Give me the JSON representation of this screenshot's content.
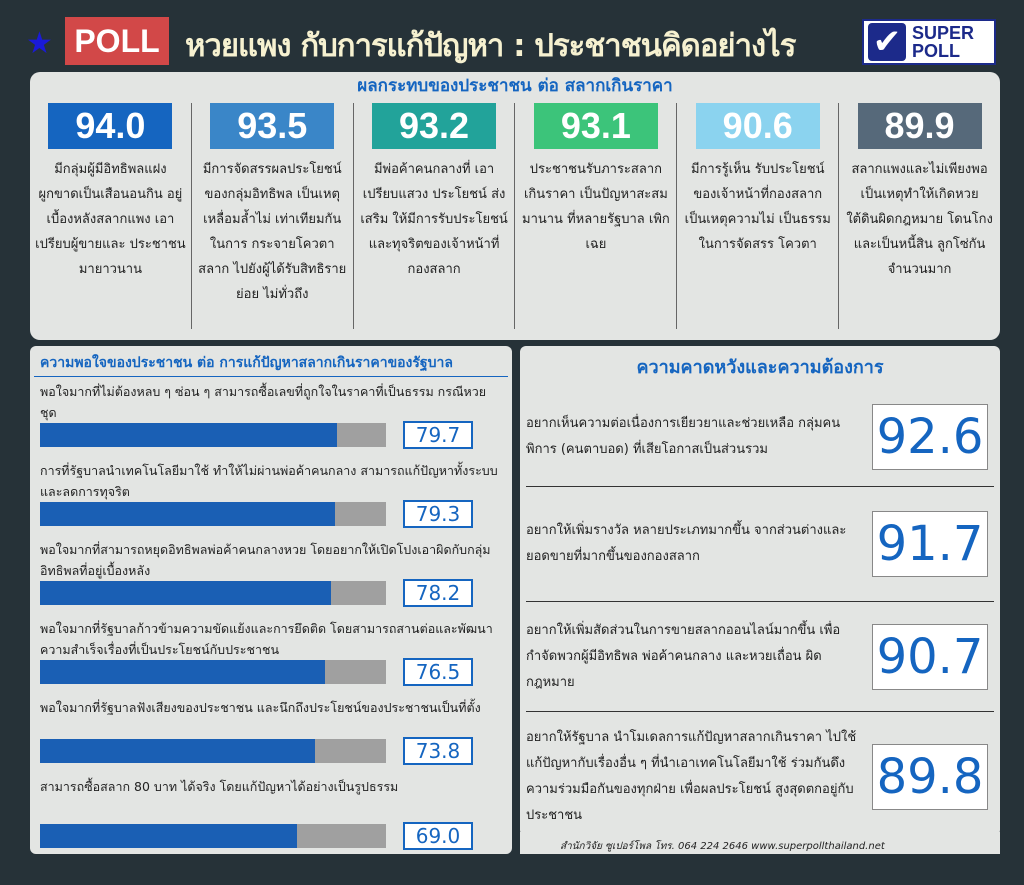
{
  "header": {
    "badge": "POLL",
    "title": "หวยแพง กับการแก้ปัญหา : ประชาชนคิดอย่างไร",
    "logo_text": "SUPER POLL"
  },
  "impact": {
    "title": "ผลกระทบของประชาชน ต่อ สลากเกินราคา",
    "items": [
      {
        "value": "94.0",
        "color": "#1565c0",
        "text": "มีกลุ่มผู้มีอิทธิพลแฝง ผูกขาดเป็นเสือนอนกิน อยู่เบื้องหลังสลากแพง เอาเปรียบผู้ขายและ ประชาชนมายาวนาน"
      },
      {
        "value": "93.5",
        "color": "#3a86c8",
        "text": "มีการจัดสรรผลประโยชน์ ของกลุ่มอิทธิพล เป็นเหตุเหลื่อมล้ำไม่ เท่าเทียมกันในการ กระจายโควตาสลาก ไปยังผู้ได้รับสิทธิรายย่อย ไม่ทั่วถึง"
      },
      {
        "value": "93.2",
        "color": "#22a39a",
        "text": "มีพ่อค้าคนกลางที่ เอาเปรียบแสวง ประโยชน์ ส่งเสริม ให้มีการรับประโยชน์ และทุจริตของเจ้าหน้าที่ กองสลาก"
      },
      {
        "value": "93.1",
        "color": "#3cc47a",
        "text": "ประชาชนรับภาระสลาก เกินราคา เป็นปัญหาสะสม มานาน ที่หลายรัฐบาล เพิกเฉย"
      },
      {
        "value": "90.6",
        "color": "#8bd3ef",
        "text": "มีการรู้เห็น รับประโยชน์ ของเจ้าหน้าที่กองสลาก เป็นเหตุความไม่ เป็นธรรมในการจัดสรร โควตา"
      },
      {
        "value": "89.9",
        "color": "#56697a",
        "text": "สลากแพงและไม่เพียงพอ เป็นเหตุทำให้เกิดหวย ใต้ดินผิดกฎหมาย โดนโกงและเป็นหนี้สิน ลูกโซ่กันจำนวนมาก"
      }
    ]
  },
  "chart_data": {
    "type": "bar",
    "title": "ความพอใจของประชาชน ต่อ การแก้ปัญหาสลากเกินราคาของรัฐบาล",
    "orientation": "horizontal",
    "xlim": [
      0,
      100
    ],
    "categories": [
      "พอใจมากที่ไม่ต้องหลบ ๆ ซ่อน ๆ สามารถซื้อเลขที่ถูกใจในราคาที่เป็นธรรม กรณีหวยชุด",
      "การที่รัฐบาลนำเทคโนโลยีมาใช้ ทำให้ไม่ผ่านพ่อค้าคนกลาง สามารถแก้ปัญหาทั้งระบบและลดการทุจริต",
      "พอใจมากที่สามารถหยุดอิทธิพลพ่อค้าคนกลางหวย โดยอยากให้เปิดโปงเอาผิดกับกลุ่มอิทธิพลที่อยู่เบื้องหลัง",
      "พอใจมากที่รัฐบาลก้าวข้ามความขัดแย้งและการยึดติด โดยสามารถสานต่อและพัฒนาความสำเร็จเรื่องที่เป็นประโยชน์กับประชาชน",
      "พอใจมากที่รัฐบาลฟังเสียงของประชาชน และนึกถึงประโยชน์ของประชาชนเป็นที่ตั้ง",
      "สามารถซื้อสลาก 80 บาท ได้จริง โดยแก้ปัญหาได้อย่างเป็นรูปธรรม"
    ],
    "values": [
      79.7,
      79.3,
      78.2,
      76.5,
      73.8,
      69.0
    ],
    "labels": [
      "79.7",
      "79.3",
      "78.2",
      "76.5",
      "73.8",
      "69.0"
    ]
  },
  "expect": {
    "title": "ความคาดหวังและความต้องการ",
    "items": [
      {
        "text": "อยากเห็นความต่อเนื่องการเยียวยาและช่วยเหลือ กลุ่มคนพิการ (คนตาบอด) ที่เสียโอกาสเป็นส่วนรวม",
        "value": "92.6"
      },
      {
        "text": "อยากให้เพิ่มรางวัล หลายประเภทมากขึ้น จากส่วนต่างและยอดขายที่มากขึ้นของกองสลาก",
        "value": "91.7"
      },
      {
        "text": "อยากให้เพิ่มสัดส่วนในการขายสลากออนไลน์มากขึ้น เพื่อกำจัดพวกผู้มีอิทธิพล พ่อค้าคนกลาง และหวยเถื่อน ผิดกฎหมาย",
        "value": "90.7"
      },
      {
        "text": "อยากให้รัฐบาล นำโมเดลการแก้ปัญหาสลากเกินราคา ไปใช้แก้ปัญหากับเรื่องอื่น ๆ ที่นำเอาเทคโนโลยีมาใช้ ร่วมกันดึงความร่วมมือกันของทุกฝ่าย เพื่อผลประโยชน์ สูงสุดตกอยู่กับประชาชน",
        "value": "89.8"
      }
    ]
  },
  "footer": "สำนักวิจัย ซูเปอร์โพล โทร. 064 224 2646    www.superpollthailand.net"
}
